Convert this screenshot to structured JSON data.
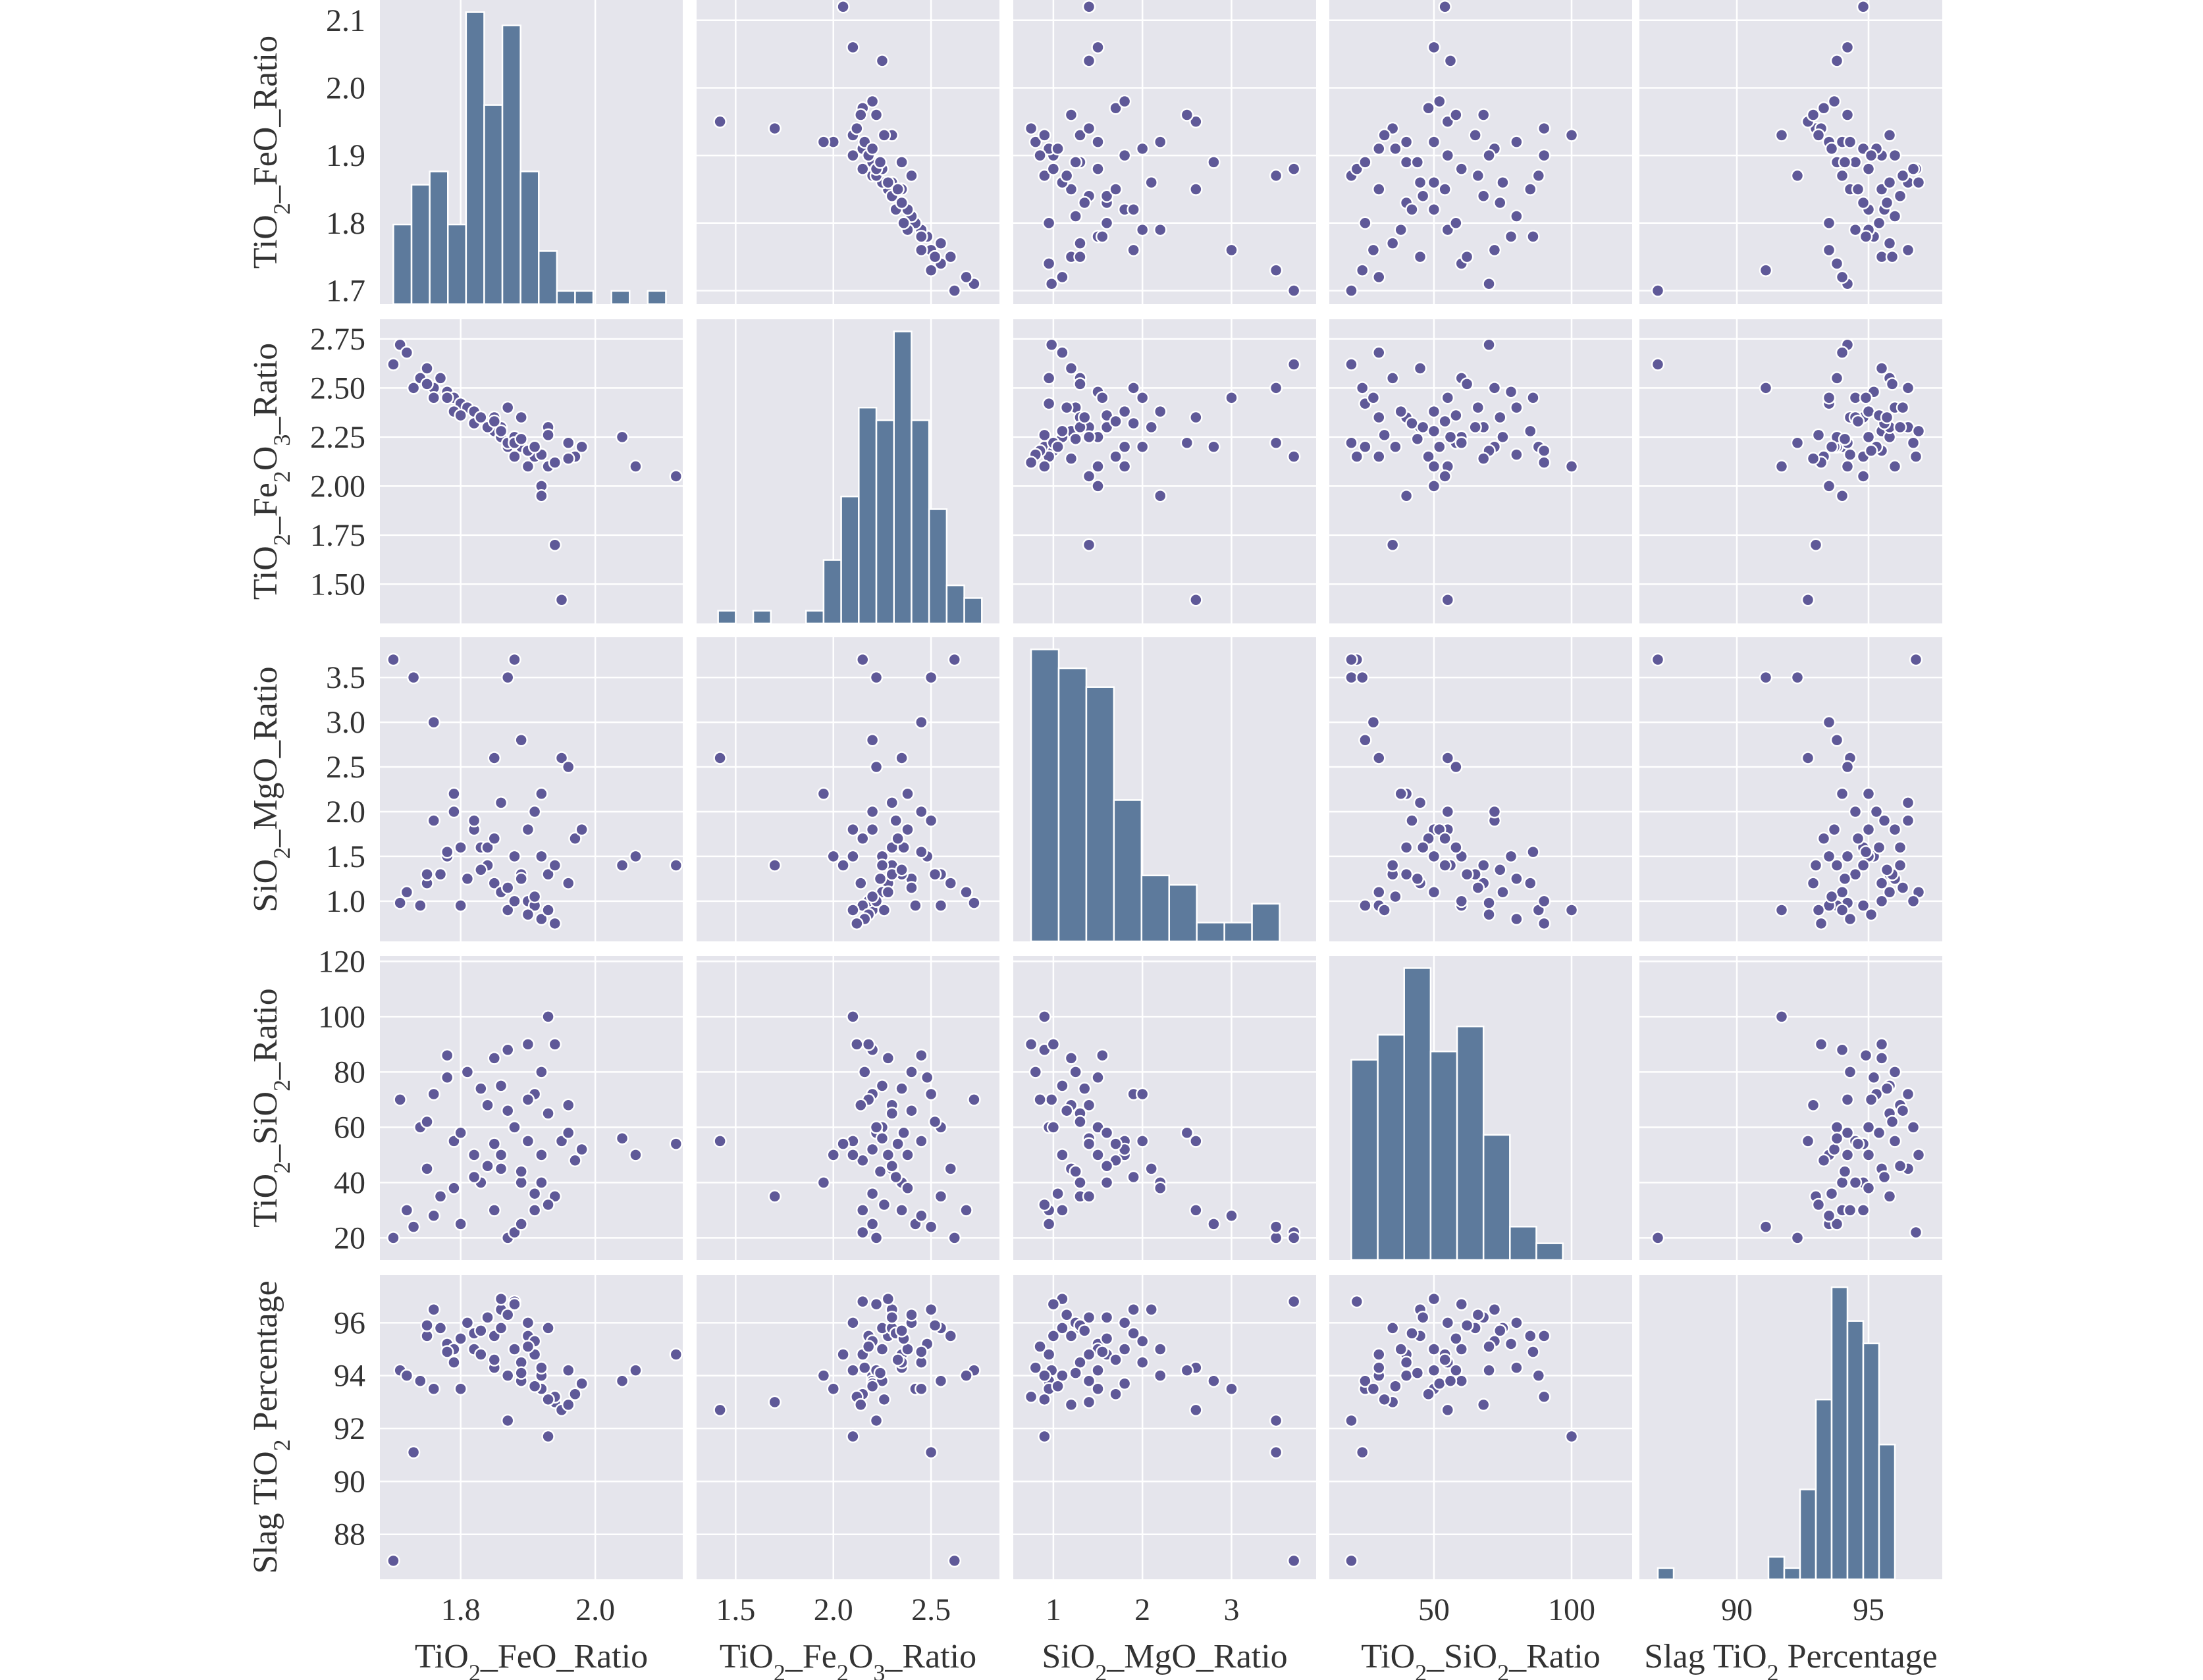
{
  "chart_data": {
    "type": "pairplot",
    "variables": [
      {
        "key": "fe",
        "label": [
          "TiO",
          "2",
          "_FeO_Ratio"
        ],
        "range": [
          1.68,
          2.13
        ],
        "ticks": [
          1.8,
          2.0
        ],
        "yticks": [
          1.7,
          1.8,
          1.9,
          2.0,
          2.1
        ]
      },
      {
        "key": "fe2o3",
        "label": [
          "TiO",
          "2",
          "_Fe",
          "2",
          "O",
          "3",
          "_Ratio"
        ],
        "range": [
          1.3,
          2.85
        ],
        "ticks": [
          1.5,
          2.0,
          2.5
        ],
        "yticks": [
          1.5,
          1.75,
          2.0,
          2.25,
          2.5,
          2.75
        ]
      },
      {
        "key": "sio2mgo",
        "label": [
          "SiO",
          "2",
          "_MgO_Ratio"
        ],
        "range": [
          0.55,
          3.95
        ],
        "ticks": [
          1,
          2,
          3
        ],
        "yticks": [
          1.0,
          1.5,
          2.0,
          2.5,
          3.0,
          3.5
        ]
      },
      {
        "key": "tisio2",
        "label": [
          "TiO",
          "2",
          "_SiO",
          "2",
          "_Ratio"
        ],
        "range": [
          12,
          122
        ],
        "ticks": [
          50,
          100
        ],
        "yticks": [
          20,
          40,
          60,
          80,
          100,
          120
        ]
      },
      {
        "key": "slag",
        "label": [
          "Slag TiO",
          "2",
          " Percentage"
        ],
        "range": [
          86.3,
          97.8
        ],
        "ticks": [
          90,
          95
        ],
        "yticks": [
          88,
          90,
          92,
          94,
          96
        ]
      }
    ],
    "histograms": [
      {
        "bins": [
          1.7,
          1.727,
          1.754,
          1.781,
          1.808,
          1.835,
          1.862,
          1.889,
          1.916,
          1.943,
          1.97,
          1.997,
          2.024,
          2.051,
          2.078,
          2.105
        ],
        "counts": [
          6,
          9,
          10,
          6,
          22,
          15,
          21,
          10,
          4,
          1,
          1,
          0,
          1,
          0,
          1
        ]
      },
      {
        "bins": [
          1.41,
          1.5,
          1.59,
          1.68,
          1.77,
          1.86,
          1.95,
          2.04,
          2.13,
          2.22,
          2.31,
          2.4,
          2.49,
          2.58,
          2.67,
          2.76
        ],
        "counts": [
          1,
          0,
          1,
          0,
          0,
          1,
          5,
          10,
          17,
          16,
          23,
          16,
          9,
          3,
          2
        ]
      },
      {
        "bins": [
          0.75,
          1.06,
          1.37,
          1.68,
          1.99,
          2.3,
          2.61,
          2.92,
          3.23,
          3.54,
          3.85
        ],
        "counts": [
          31,
          29,
          27,
          15,
          7,
          6,
          2,
          2,
          4,
          0
        ]
      },
      {
        "bins": [
          20,
          29.6,
          39.2,
          48.8,
          58.4,
          68,
          77.6,
          87.2,
          96.8,
          106.4,
          116
        ],
        "counts": [
          24,
          27,
          35,
          25,
          28,
          15,
          4,
          2,
          0,
          0
        ]
      },
      {
        "bins": [
          87,
          87.6,
          88.2,
          88.8,
          89.4,
          90,
          90.6,
          91.2,
          91.8,
          92.4,
          93,
          93.6,
          94.2,
          94.8,
          95.4,
          96,
          96.6,
          97.2
        ],
        "counts": [
          1,
          0,
          0,
          0,
          0,
          0,
          0,
          2,
          1,
          8,
          16,
          26,
          23,
          21,
          12,
          0,
          0
        ]
      }
    ],
    "points": {
      "fe": [
        1.71,
        1.72,
        1.74,
        1.75,
        1.76,
        1.77,
        1.78,
        1.79,
        1.8,
        1.81,
        1.82,
        1.83,
        1.84,
        1.85,
        1.85,
        1.86,
        1.86,
        1.87,
        1.87,
        1.88,
        1.88,
        1.89,
        1.89,
        1.9,
        1.9,
        1.91,
        1.91,
        1.92,
        1.92,
        1.93,
        1.93,
        1.94,
        1.95,
        1.96,
        1.97,
        1.98,
        2.04,
        2.06,
        2.12,
        1.7,
        1.73,
        1.76,
        1.79,
        1.82,
        1.84,
        1.86,
        1.88,
        1.9,
        1.92,
        1.94,
        1.96,
        1.75,
        1.8,
        1.85,
        1.89,
        1.91,
        1.93,
        1.87,
        1.83,
        1.78
      ],
      "fe2o3": [
        2.72,
        2.68,
        2.55,
        2.6,
        2.5,
        2.55,
        2.48,
        2.45,
        2.42,
        2.4,
        2.38,
        2.35,
        2.3,
        2.28,
        2.35,
        2.25,
        2.3,
        2.2,
        2.22,
        2.15,
        2.25,
        2.35,
        2.2,
        2.18,
        2.1,
        2.15,
        2.2,
        2.0,
        1.95,
        2.3,
        2.1,
        1.7,
        1.42,
        2.22,
        2.15,
        2.2,
        2.25,
        2.1,
        2.05,
        2.62,
        2.5,
        2.45,
        2.38,
        2.32,
        2.3,
        2.28,
        2.22,
        2.18,
        2.16,
        2.12,
        2.14,
        2.52,
        2.36,
        2.33,
        2.24,
        2.2,
        2.26,
        2.4,
        2.35,
        2.45
      ],
      "sio2mgo": [
        0.98,
        1.1,
        0.95,
        1.2,
        1.9,
        1.3,
        1.5,
        2.0,
        0.95,
        1.25,
        1.8,
        1.6,
        1.4,
        1.2,
        2.6,
        1.1,
        2.1,
        0.9,
        3.5,
        3.7,
        1.5,
        1.3,
        2.8,
        1.0,
        1.8,
        0.95,
        2.0,
        1.5,
        2.2,
        1.3,
        0.9,
        1.4,
        2.6,
        2.5,
        1.7,
        1.8,
        1.4,
        1.5,
        1.4,
        3.7,
        3.5,
        3.0,
        2.2,
        1.9,
        1.6,
        1.1,
        1.0,
        0.85,
        0.8,
        0.75,
        1.2,
        1.3,
        1.6,
        1.7,
        1.25,
        1.05,
        0.9,
        1.15,
        1.35,
        1.55
      ],
      "tisio2": [
        70,
        30,
        60,
        45,
        72,
        35,
        78,
        55,
        25,
        80,
        50,
        40,
        68,
        85,
        30,
        75,
        45,
        88,
        20,
        22,
        60,
        40,
        25,
        90,
        55,
        30,
        72,
        50,
        40,
        65,
        100,
        35,
        55,
        58,
        48,
        52,
        56,
        50,
        54,
        20,
        24,
        28,
        38,
        42,
        46,
        50,
        60,
        70,
        80,
        90,
        68,
        62,
        58,
        54,
        44,
        36,
        32,
        66,
        74,
        86
      ],
      "slag": [
        94.2,
        94.0,
        93.8,
        95.5,
        96.5,
        95.8,
        95.2,
        94.5,
        93.5,
        96.0,
        95.0,
        94.8,
        96.2,
        95.5,
        94.3,
        95.8,
        96.5,
        94.0,
        92.3,
        96.8,
        95.0,
        94.5,
        93.8,
        95.5,
        96.0,
        94.8,
        95.3,
        93.5,
        94.0,
        95.8,
        91.7,
        93.0,
        92.7,
        94.2,
        93.3,
        93.7,
        93.8,
        94.2,
        94.8,
        87.0,
        91.1,
        93.5,
        95.0,
        95.6,
        96.2,
        96.9,
        96.7,
        95.1,
        94.3,
        93.2,
        92.9,
        95.9,
        95.4,
        94.6,
        94.1,
        93.6,
        93.1,
        96.3,
        95.7,
        94.9
      ]
    }
  }
}
